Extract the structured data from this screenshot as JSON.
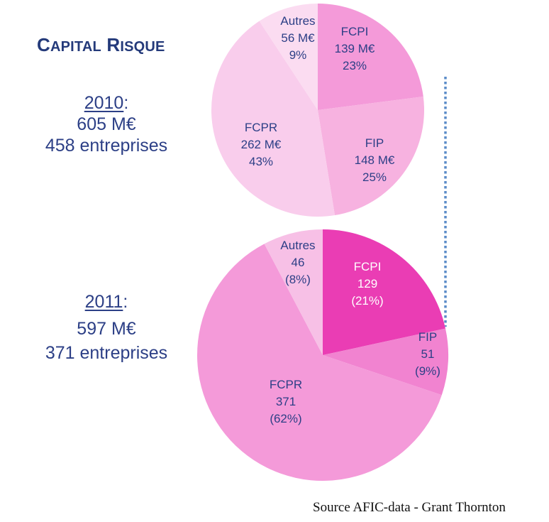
{
  "title": {
    "cap1": "C",
    "rest1": "APITAL",
    "cap2": "R",
    "rest2": "ISQUE"
  },
  "years": [
    {
      "year": "2010",
      "colon": ":",
      "amount": "605 M€",
      "companies": "458 entreprises"
    },
    {
      "year": "2011",
      "colon": ":",
      "amount": "597 M€",
      "companies": "371 entreprises"
    }
  ],
  "source": "Source AFIC-data - Grant Thornton",
  "chart_data": [
    {
      "type": "pie",
      "title": "2010",
      "categories": [
        "FCPI",
        "FIP",
        "FCPR",
        "Autres"
      ],
      "values": [
        139,
        148,
        262,
        56
      ],
      "unit": "M€",
      "percentages": [
        23,
        25,
        43,
        9
      ],
      "labels": [
        [
          "FCPI",
          "139 M€",
          "23%"
        ],
        [
          "FIP",
          "148 M€",
          "25%"
        ],
        [
          "FCPR",
          "262 M€",
          "43%"
        ],
        [
          "Autres",
          "56 M€",
          "9%"
        ]
      ],
      "colors": [
        "#f49ad9",
        "#f7b2e0",
        "#f9cdec",
        "#fbdcf1"
      ],
      "label_colors": [
        "#2c3f86",
        "#2c3f86",
        "#2c3f86",
        "#2c3f86"
      ]
    },
    {
      "type": "pie",
      "title": "2011",
      "categories": [
        "FCPI",
        "FIP",
        "FCPR",
        "Autres"
      ],
      "values": [
        129,
        51,
        371,
        46
      ],
      "unit": "M€",
      "percentages": [
        21,
        9,
        62,
        8
      ],
      "labels": [
        [
          "FCPI",
          "129",
          "(21%)"
        ],
        [
          "FIP",
          "51",
          "(9%)"
        ],
        [
          "FCPR",
          "371",
          "(62%)"
        ],
        [
          "Autres",
          "46",
          "(8%)"
        ]
      ],
      "colors": [
        "#ea3db4",
        "#f183d0",
        "#f49ad9",
        "#f7c0e6"
      ],
      "label_colors": [
        "#ffffff",
        "#2c3f86",
        "#2c3f86",
        "#2c3f86"
      ]
    }
  ],
  "connector": {
    "style": "dotted",
    "color": "#5b8cc8"
  }
}
